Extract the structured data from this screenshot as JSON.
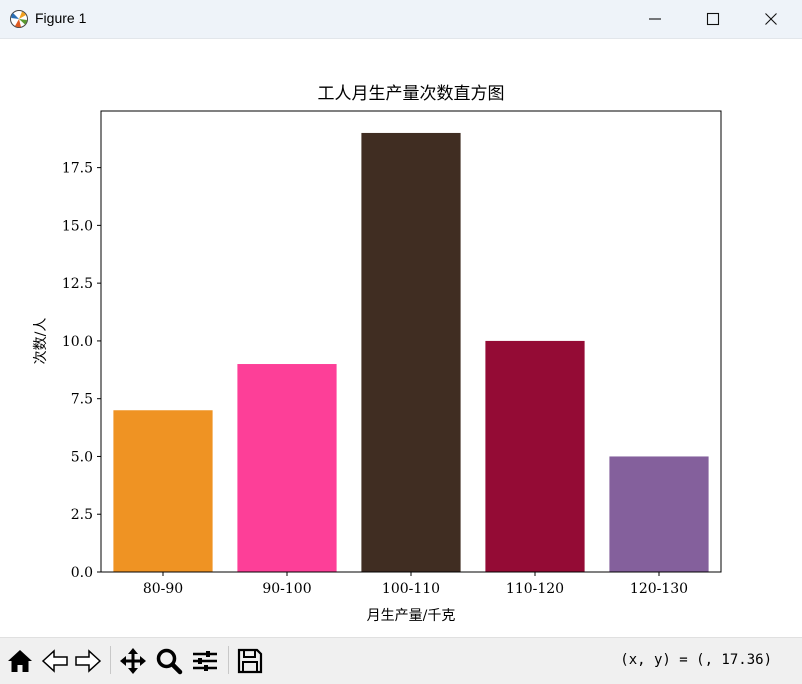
{
  "window": {
    "title": "Figure 1",
    "controls": {
      "minimize_icon": "minimize-icon",
      "maximize_icon": "maximize-icon",
      "close_icon": "close-icon"
    }
  },
  "chart_data": {
    "type": "bar",
    "title": "工人月生产量次数直方图",
    "xlabel": "月生产量/千克",
    "ylabel": "次数/人",
    "categories": [
      "80-90",
      "90-100",
      "100-110",
      "110-120",
      "120-130"
    ],
    "values": [
      7,
      9,
      19,
      10,
      5
    ],
    "colors": [
      "#ef9323",
      "#fd3f98",
      "#402d22",
      "#940b35",
      "#84609c"
    ],
    "ylim": [
      0,
      19.95
    ],
    "yticks": [
      0,
      2.5,
      5,
      7.5,
      10,
      12.5,
      15,
      17.5
    ],
    "ytick_labels": [
      "0.0",
      "2.5",
      "5.0",
      "7.5",
      "10.0",
      "12.5",
      "15.0",
      "17.5"
    ],
    "grid": false,
    "legend": "none"
  },
  "toolbar": {
    "buttons": [
      "home-icon",
      "back-icon",
      "forward-icon",
      "pan-icon",
      "zoom-icon",
      "configure-subplots-icon",
      "save-icon"
    ],
    "coords": "(x, y) = (, 17.36)"
  }
}
